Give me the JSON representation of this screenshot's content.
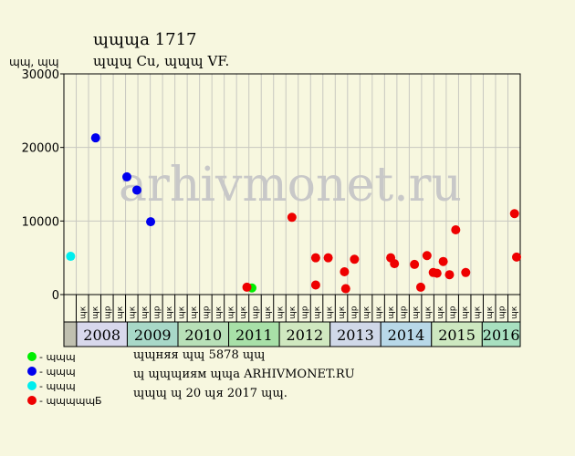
{
  "header": {
    "title": "ɰɰɰа 1717",
    "subtitle": "ɰɰɰ Cu, ɰɰɰ VF.",
    "ylabel": "ɰɰ, ɰɰ"
  },
  "watermark": "arhivmonet.ru",
  "legend": [
    {
      "label": "- ɰɰɰ",
      "color": "#00ee00",
      "name": "legend-green"
    },
    {
      "label": "- ɰɰɰ",
      "color": "#0000ee",
      "name": "legend-blue"
    },
    {
      "label": "- ɰɰɰ",
      "color": "#00eeee",
      "name": "legend-cyan"
    },
    {
      "label": "- ɰɰɰɰɰБ",
      "color": "#ee0000",
      "name": "legend-red"
    }
  ],
  "notes": {
    "line1": "ɰɰняя ɰɰ 5878 ɰɰ",
    "line2": "ɰ ɰɰɰиям ɰɰа ARHIVMONET.RU",
    "line3": "ɰɰɰ ɰ 20 ɰя 2017 ɰɰ."
  },
  "chart_data": {
    "type": "scatter",
    "title": "ɰɰɰа 1717",
    "ylabel": "ɰɰ, ɰɰ",
    "ylim": [
      0,
      30000
    ],
    "yticks": [
      0,
      10000,
      20000,
      30000
    ],
    "grid": true,
    "x_range": [
      0,
      36
    ],
    "month_labels": [
      "ɰк",
      "ɰк",
      "ɰр",
      "ɰк",
      "ɰк",
      "ɰк",
      "ɰр",
      "ɰк",
      "ɰк",
      "ɰк",
      "ɰр",
      "ɰк",
      "ɰк",
      "ɰк",
      "ɰр",
      "ɰк",
      "ɰк",
      "ɰк",
      "ɰр",
      "ɰк",
      "ɰк",
      "ɰк",
      "ɰр",
      "ɰк",
      "ɰк",
      "ɰк",
      "ɰр",
      "ɰк",
      "ɰк",
      "ɰк",
      "ɰр",
      "ɰк",
      "ɰк",
      "ɰк",
      "ɰр",
      "ɰк"
    ],
    "years": [
      {
        "label": "",
        "start": 0,
        "end": 1,
        "color": "#c0c0b0"
      },
      {
        "label": "2008",
        "start": 1,
        "end": 5,
        "color": "#d8d8ec"
      },
      {
        "label": "2009",
        "start": 5,
        "end": 9,
        "color": "#a8d8c8"
      },
      {
        "label": "2010",
        "start": 9,
        "end": 13,
        "color": "#b8e0b8"
      },
      {
        "label": "2011",
        "start": 13,
        "end": 17,
        "color": "#a8e0a8"
      },
      {
        "label": "2012",
        "start": 17,
        "end": 21,
        "color": "#d0e8c0"
      },
      {
        "label": "2013",
        "start": 21,
        "end": 25,
        "color": "#d0d8e8"
      },
      {
        "label": "2014",
        "start": 25,
        "end": 29,
        "color": "#b8d8e8"
      },
      {
        "label": "2015",
        "start": 29,
        "end": 33,
        "color": "#cde8c0"
      },
      {
        "label": "2016",
        "start": 33,
        "end": 36,
        "color": "#a8e0c0"
      }
    ],
    "series": [
      {
        "color": "#00ee00",
        "points": [
          {
            "x": 14.6,
            "y": 900
          }
        ]
      },
      {
        "color": "#0000ee",
        "points": [
          {
            "x": 2.1,
            "y": 21300
          },
          {
            "x": 4.6,
            "y": 16000
          },
          {
            "x": 5.4,
            "y": 14200
          },
          {
            "x": 6.5,
            "y": 9900
          }
        ]
      },
      {
        "color": "#00eeee",
        "points": [
          {
            "x": 0.1,
            "y": 5200
          }
        ]
      },
      {
        "color": "#ee0000",
        "points": [
          {
            "x": 14.2,
            "y": 1000
          },
          {
            "x": 17.8,
            "y": 10500
          },
          {
            "x": 19.7,
            "y": 5000
          },
          {
            "x": 19.7,
            "y": 1300
          },
          {
            "x": 20.7,
            "y": 5000
          },
          {
            "x": 22.0,
            "y": 3100
          },
          {
            "x": 22.1,
            "y": 800
          },
          {
            "x": 22.8,
            "y": 4800
          },
          {
            "x": 25.7,
            "y": 5000
          },
          {
            "x": 26.0,
            "y": 4200
          },
          {
            "x": 27.6,
            "y": 4100
          },
          {
            "x": 28.1,
            "y": 1000
          },
          {
            "x": 28.6,
            "y": 5300
          },
          {
            "x": 29.1,
            "y": 3000
          },
          {
            "x": 29.4,
            "y": 2900
          },
          {
            "x": 29.9,
            "y": 4500
          },
          {
            "x": 30.4,
            "y": 2700
          },
          {
            "x": 30.9,
            "y": 8800
          },
          {
            "x": 31.7,
            "y": 3000
          },
          {
            "x": 35.6,
            "y": 11000
          },
          {
            "x": 37.0,
            "y": 5100
          }
        ]
      }
    ]
  }
}
